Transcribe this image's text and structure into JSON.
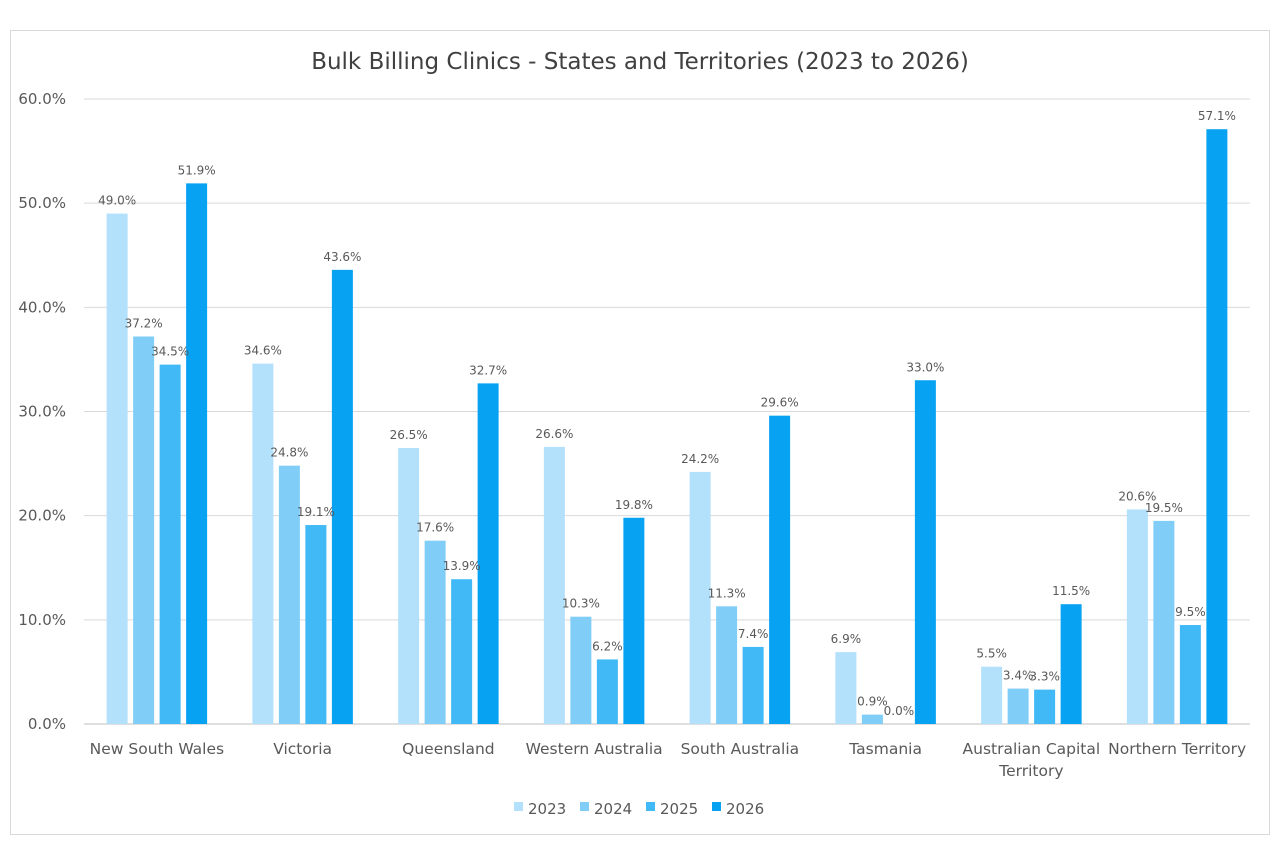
{
  "chart_data": {
    "type": "bar",
    "title": "Bulk Billing Clinics - States and Territories (2023 to 2026)",
    "xlabel": "",
    "ylabel": "",
    "ylim": [
      0,
      60
    ],
    "yticks": [
      0,
      10,
      20,
      30,
      40,
      50,
      60
    ],
    "ytick_labels": [
      "0.0%",
      "10.0%",
      "20.0%",
      "30.0%",
      "40.0%",
      "50.0%",
      "60.0%"
    ],
    "grid": true,
    "legend_position": "bottom-center",
    "categories": [
      [
        "New South Wales"
      ],
      [
        "Victoria"
      ],
      [
        "Queensland"
      ],
      [
        "Western Australia"
      ],
      [
        "South Australia"
      ],
      [
        "Tasmania"
      ],
      [
        "Australian Capital",
        "Territory"
      ],
      [
        "Northern Territory"
      ]
    ],
    "series": [
      {
        "name": "2023",
        "color": "#b3e0fb",
        "values": [
          49.0,
          34.6,
          26.5,
          26.6,
          24.2,
          6.9,
          5.5,
          20.6
        ],
        "labels": [
          "49.0%",
          "34.6%",
          "26.5%",
          "26.6%",
          "24.2%",
          "6.9%",
          "5.5%",
          "20.6%"
        ]
      },
      {
        "name": "2024",
        "color": "#80cdf8",
        "values": [
          37.2,
          24.8,
          17.6,
          10.3,
          11.3,
          0.9,
          3.4,
          19.5
        ],
        "labels": [
          "37.2%",
          "24.8%",
          "17.6%",
          "10.3%",
          "11.3%",
          "0.9%",
          "3.4%",
          "19.5%"
        ]
      },
      {
        "name": "2025",
        "color": "#40b9f6",
        "values": [
          34.5,
          19.1,
          13.9,
          6.2,
          7.4,
          0.0,
          3.3,
          9.5
        ],
        "labels": [
          "34.5%",
          "19.1%",
          "13.9%",
          "6.2%",
          "7.4%",
          "0.0%",
          "3.3%",
          "9.5%"
        ]
      },
      {
        "name": "2026",
        "color": "#07a3f2",
        "values": [
          51.9,
          43.6,
          32.7,
          19.8,
          29.6,
          33.0,
          11.5,
          57.1
        ],
        "labels": [
          "51.9%",
          "43.6%",
          "32.7%",
          "19.8%",
          "29.6%",
          "33.0%",
          "11.5%",
          "57.1%"
        ]
      }
    ]
  }
}
